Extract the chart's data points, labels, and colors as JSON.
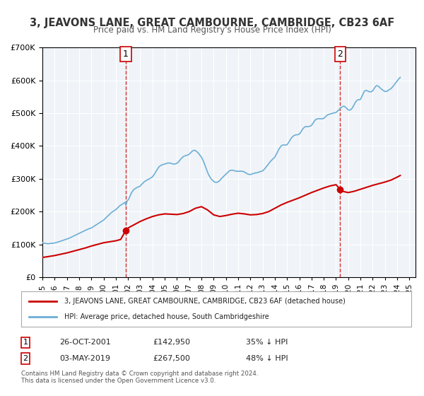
{
  "title": "3, JEAVONS LANE, GREAT CAMBOURNE, CAMBRIDGE, CB23 6AF",
  "subtitle": "Price paid vs. HM Land Registry's House Price Index (HPI)",
  "legend_line1": "3, JEAVONS LANE, GREAT CAMBOURNE, CAMBRIDGE, CB23 6AF (detached house)",
  "legend_line2": "HPI: Average price, detached house, South Cambridgeshire",
  "annotation1_label": "1",
  "annotation1_date": "26-OCT-2001",
  "annotation1_price": "£142,950",
  "annotation1_hpi": "35% ↓ HPI",
  "annotation1_year": 2001.82,
  "annotation1_value": 142950,
  "annotation2_label": "2",
  "annotation2_date": "03-MAY-2019",
  "annotation2_price": "£267,500",
  "annotation2_hpi": "48% ↓ HPI",
  "annotation2_year": 2019.34,
  "annotation2_value": 267500,
  "hpi_color": "#6baed6",
  "price_color": "#cc0000",
  "marker_color": "#cc0000",
  "vline_color": "#cc0000",
  "background_color": "#f0f4f8",
  "ylim": [
    0,
    700000
  ],
  "xlim_start": 1995.0,
  "xlim_end": 2025.5,
  "footer": "Contains HM Land Registry data © Crown copyright and database right 2024.\nThis data is licensed under the Open Government Licence v3.0.",
  "hpi_data": [
    [
      1995.0,
      106000
    ],
    [
      1995.08,
      104000
    ],
    [
      1995.17,
      103500
    ],
    [
      1995.25,
      103000
    ],
    [
      1995.33,
      102500
    ],
    [
      1995.42,
      102000
    ],
    [
      1995.5,
      102000
    ],
    [
      1995.58,
      102500
    ],
    [
      1995.67,
      103000
    ],
    [
      1995.75,
      103000
    ],
    [
      1995.83,
      103500
    ],
    [
      1995.92,
      104000
    ],
    [
      1996.0,
      104500
    ],
    [
      1996.08,
      105000
    ],
    [
      1996.17,
      106000
    ],
    [
      1996.25,
      107000
    ],
    [
      1996.33,
      108000
    ],
    [
      1996.42,
      109000
    ],
    [
      1996.5,
      110000
    ],
    [
      1996.58,
      111000
    ],
    [
      1996.67,
      112000
    ],
    [
      1996.75,
      113000
    ],
    [
      1996.83,
      114000
    ],
    [
      1996.92,
      115000
    ],
    [
      1997.0,
      116000
    ],
    [
      1997.08,
      117000
    ],
    [
      1997.17,
      118500
    ],
    [
      1997.25,
      120000
    ],
    [
      1997.33,
      121500
    ],
    [
      1997.42,
      123000
    ],
    [
      1997.5,
      124500
    ],
    [
      1997.58,
      126000
    ],
    [
      1997.67,
      127500
    ],
    [
      1997.75,
      129000
    ],
    [
      1997.83,
      130500
    ],
    [
      1997.92,
      132000
    ],
    [
      1998.0,
      133500
    ],
    [
      1998.08,
      135000
    ],
    [
      1998.17,
      136500
    ],
    [
      1998.25,
      138000
    ],
    [
      1998.33,
      139500
    ],
    [
      1998.42,
      141000
    ],
    [
      1998.5,
      142500
    ],
    [
      1998.58,
      144000
    ],
    [
      1998.67,
      145500
    ],
    [
      1998.75,
      147000
    ],
    [
      1998.83,
      148000
    ],
    [
      1998.92,
      149000
    ],
    [
      1999.0,
      150000
    ],
    [
      1999.08,
      152000
    ],
    [
      1999.17,
      154000
    ],
    [
      1999.25,
      156000
    ],
    [
      1999.33,
      158000
    ],
    [
      1999.42,
      160000
    ],
    [
      1999.5,
      162000
    ],
    [
      1999.58,
      164000
    ],
    [
      1999.67,
      166000
    ],
    [
      1999.75,
      168000
    ],
    [
      1999.83,
      170000
    ],
    [
      1999.92,
      172000
    ],
    [
      2000.0,
      174000
    ],
    [
      2000.08,
      177000
    ],
    [
      2000.17,
      180000
    ],
    [
      2000.25,
      183000
    ],
    [
      2000.33,
      186000
    ],
    [
      2000.42,
      189000
    ],
    [
      2000.5,
      192000
    ],
    [
      2000.58,
      195000
    ],
    [
      2000.67,
      198000
    ],
    [
      2000.75,
      200000
    ],
    [
      2000.83,
      202000
    ],
    [
      2000.92,
      204000
    ],
    [
      2001.0,
      206000
    ],
    [
      2001.08,
      209000
    ],
    [
      2001.17,
      212000
    ],
    [
      2001.25,
      215000
    ],
    [
      2001.33,
      218000
    ],
    [
      2001.42,
      220000
    ],
    [
      2001.5,
      222000
    ],
    [
      2001.58,
      224000
    ],
    [
      2001.67,
      226000
    ],
    [
      2001.75,
      228000
    ],
    [
      2001.82,
      219000
    ],
    [
      2001.92,
      232000
    ],
    [
      2002.0,
      235000
    ],
    [
      2002.08,
      240000
    ],
    [
      2002.17,
      248000
    ],
    [
      2002.25,
      255000
    ],
    [
      2002.33,
      260000
    ],
    [
      2002.42,
      265000
    ],
    [
      2002.5,
      268000
    ],
    [
      2002.58,
      270000
    ],
    [
      2002.67,
      272000
    ],
    [
      2002.75,
      274000
    ],
    [
      2002.83,
      275000
    ],
    [
      2002.92,
      276000
    ],
    [
      2003.0,
      278000
    ],
    [
      2003.08,
      282000
    ],
    [
      2003.17,
      285000
    ],
    [
      2003.25,
      288000
    ],
    [
      2003.33,
      291000
    ],
    [
      2003.42,
      293000
    ],
    [
      2003.5,
      295000
    ],
    [
      2003.58,
      297000
    ],
    [
      2003.67,
      298000
    ],
    [
      2003.75,
      300000
    ],
    [
      2003.83,
      302000
    ],
    [
      2003.92,
      304000
    ],
    [
      2004.0,
      306000
    ],
    [
      2004.08,
      310000
    ],
    [
      2004.17,
      315000
    ],
    [
      2004.25,
      320000
    ],
    [
      2004.33,
      325000
    ],
    [
      2004.42,
      330000
    ],
    [
      2004.5,
      335000
    ],
    [
      2004.58,
      338000
    ],
    [
      2004.67,
      340000
    ],
    [
      2004.75,
      342000
    ],
    [
      2004.83,
      343000
    ],
    [
      2004.92,
      344000
    ],
    [
      2005.0,
      345000
    ],
    [
      2005.08,
      346000
    ],
    [
      2005.17,
      347000
    ],
    [
      2005.25,
      348000
    ],
    [
      2005.33,
      348000
    ],
    [
      2005.42,
      348000
    ],
    [
      2005.5,
      347000
    ],
    [
      2005.58,
      346000
    ],
    [
      2005.67,
      345000
    ],
    [
      2005.75,
      345000
    ],
    [
      2005.83,
      345000
    ],
    [
      2005.92,
      346000
    ],
    [
      2006.0,
      347000
    ],
    [
      2006.08,
      350000
    ],
    [
      2006.17,
      353000
    ],
    [
      2006.25,
      357000
    ],
    [
      2006.33,
      361000
    ],
    [
      2006.42,
      364000
    ],
    [
      2006.5,
      367000
    ],
    [
      2006.58,
      369000
    ],
    [
      2006.67,
      370000
    ],
    [
      2006.75,
      371000
    ],
    [
      2006.83,
      372000
    ],
    [
      2006.92,
      373000
    ],
    [
      2007.0,
      375000
    ],
    [
      2007.08,
      378000
    ],
    [
      2007.17,
      381000
    ],
    [
      2007.25,
      384000
    ],
    [
      2007.33,
      386000
    ],
    [
      2007.42,
      387000
    ],
    [
      2007.5,
      386000
    ],
    [
      2007.58,
      384000
    ],
    [
      2007.67,
      381000
    ],
    [
      2007.75,
      378000
    ],
    [
      2007.83,
      374000
    ],
    [
      2007.92,
      370000
    ],
    [
      2008.0,
      366000
    ],
    [
      2008.08,
      360000
    ],
    [
      2008.17,
      353000
    ],
    [
      2008.25,
      345000
    ],
    [
      2008.33,
      337000
    ],
    [
      2008.42,
      328000
    ],
    [
      2008.5,
      320000
    ],
    [
      2008.58,
      313000
    ],
    [
      2008.67,
      307000
    ],
    [
      2008.75,
      302000
    ],
    [
      2008.83,
      298000
    ],
    [
      2008.92,
      295000
    ],
    [
      2009.0,
      292000
    ],
    [
      2009.08,
      290000
    ],
    [
      2009.17,
      289000
    ],
    [
      2009.25,
      289000
    ],
    [
      2009.33,
      290000
    ],
    [
      2009.42,
      292000
    ],
    [
      2009.5,
      295000
    ],
    [
      2009.58,
      298000
    ],
    [
      2009.67,
      302000
    ],
    [
      2009.75,
      305000
    ],
    [
      2009.83,
      308000
    ],
    [
      2009.92,
      311000
    ],
    [
      2010.0,
      314000
    ],
    [
      2010.08,
      317000
    ],
    [
      2010.17,
      320000
    ],
    [
      2010.25,
      323000
    ],
    [
      2010.33,
      325000
    ],
    [
      2010.42,
      326000
    ],
    [
      2010.5,
      326000
    ],
    [
      2010.58,
      326000
    ],
    [
      2010.67,
      325000
    ],
    [
      2010.75,
      324000
    ],
    [
      2010.83,
      323000
    ],
    [
      2010.92,
      323000
    ],
    [
      2011.0,
      323000
    ],
    [
      2011.08,
      323000
    ],
    [
      2011.17,
      323000
    ],
    [
      2011.25,
      323000
    ],
    [
      2011.33,
      323000
    ],
    [
      2011.42,
      322000
    ],
    [
      2011.5,
      321000
    ],
    [
      2011.58,
      319000
    ],
    [
      2011.67,
      317000
    ],
    [
      2011.75,
      315000
    ],
    [
      2011.83,
      314000
    ],
    [
      2011.92,
      313000
    ],
    [
      2012.0,
      313000
    ],
    [
      2012.08,
      314000
    ],
    [
      2012.17,
      315000
    ],
    [
      2012.25,
      316000
    ],
    [
      2012.33,
      317000
    ],
    [
      2012.42,
      318000
    ],
    [
      2012.5,
      318000
    ],
    [
      2012.58,
      319000
    ],
    [
      2012.67,
      320000
    ],
    [
      2012.75,
      321000
    ],
    [
      2012.83,
      322000
    ],
    [
      2012.92,
      323000
    ],
    [
      2013.0,
      324000
    ],
    [
      2013.08,
      327000
    ],
    [
      2013.17,
      330000
    ],
    [
      2013.25,
      334000
    ],
    [
      2013.33,
      338000
    ],
    [
      2013.42,
      342000
    ],
    [
      2013.5,
      346000
    ],
    [
      2013.58,
      350000
    ],
    [
      2013.67,
      354000
    ],
    [
      2013.75,
      357000
    ],
    [
      2013.83,
      360000
    ],
    [
      2013.92,
      363000
    ],
    [
      2014.0,
      366000
    ],
    [
      2014.08,
      372000
    ],
    [
      2014.17,
      378000
    ],
    [
      2014.25,
      384000
    ],
    [
      2014.33,
      390000
    ],
    [
      2014.42,
      395000
    ],
    [
      2014.5,
      399000
    ],
    [
      2014.58,
      402000
    ],
    [
      2014.67,
      403000
    ],
    [
      2014.75,
      403000
    ],
    [
      2014.83,
      403000
    ],
    [
      2014.92,
      403000
    ],
    [
      2015.0,
      404000
    ],
    [
      2015.08,
      408000
    ],
    [
      2015.17,
      413000
    ],
    [
      2015.25,
      418000
    ],
    [
      2015.33,
      423000
    ],
    [
      2015.42,
      427000
    ],
    [
      2015.5,
      430000
    ],
    [
      2015.58,
      432000
    ],
    [
      2015.67,
      433000
    ],
    [
      2015.75,
      434000
    ],
    [
      2015.83,
      434000
    ],
    [
      2015.92,
      435000
    ],
    [
      2016.0,
      436000
    ],
    [
      2016.08,
      440000
    ],
    [
      2016.17,
      445000
    ],
    [
      2016.25,
      450000
    ],
    [
      2016.33,
      454000
    ],
    [
      2016.42,
      457000
    ],
    [
      2016.5,
      459000
    ],
    [
      2016.58,
      459000
    ],
    [
      2016.67,
      459000
    ],
    [
      2016.75,
      459000
    ],
    [
      2016.83,
      460000
    ],
    [
      2016.92,
      461000
    ],
    [
      2017.0,
      463000
    ],
    [
      2017.08,
      467000
    ],
    [
      2017.17,
      472000
    ],
    [
      2017.25,
      477000
    ],
    [
      2017.33,
      480000
    ],
    [
      2017.42,
      482000
    ],
    [
      2017.5,
      483000
    ],
    [
      2017.58,
      483000
    ],
    [
      2017.67,
      483000
    ],
    [
      2017.75,
      483000
    ],
    [
      2017.83,
      483000
    ],
    [
      2017.92,
      483000
    ],
    [
      2018.0,
      484000
    ],
    [
      2018.08,
      487000
    ],
    [
      2018.17,
      490000
    ],
    [
      2018.25,
      493000
    ],
    [
      2018.33,
      495000
    ],
    [
      2018.42,
      496000
    ],
    [
      2018.5,
      497000
    ],
    [
      2018.58,
      498000
    ],
    [
      2018.67,
      499000
    ],
    [
      2018.75,
      500000
    ],
    [
      2018.83,
      501000
    ],
    [
      2018.92,
      501000
    ],
    [
      2019.0,
      502000
    ],
    [
      2019.08,
      505000
    ],
    [
      2019.17,
      508000
    ],
    [
      2019.25,
      510000
    ],
    [
      2019.34,
      514000
    ],
    [
      2019.42,
      517000
    ],
    [
      2019.5,
      519000
    ],
    [
      2019.58,
      521000
    ],
    [
      2019.67,
      521000
    ],
    [
      2019.75,
      519000
    ],
    [
      2019.83,
      516000
    ],
    [
      2019.92,
      513000
    ],
    [
      2020.0,
      510000
    ],
    [
      2020.08,
      509000
    ],
    [
      2020.17,
      510000
    ],
    [
      2020.25,
      512000
    ],
    [
      2020.33,
      516000
    ],
    [
      2020.42,
      521000
    ],
    [
      2020.5,
      527000
    ],
    [
      2020.58,
      533000
    ],
    [
      2020.67,
      537000
    ],
    [
      2020.75,
      540000
    ],
    [
      2020.83,
      541000
    ],
    [
      2020.92,
      541000
    ],
    [
      2021.0,
      542000
    ],
    [
      2021.08,
      548000
    ],
    [
      2021.17,
      555000
    ],
    [
      2021.25,
      562000
    ],
    [
      2021.33,
      567000
    ],
    [
      2021.42,
      569000
    ],
    [
      2021.5,
      569000
    ],
    [
      2021.58,
      568000
    ],
    [
      2021.67,
      566000
    ],
    [
      2021.75,
      565000
    ],
    [
      2021.83,
      565000
    ],
    [
      2021.92,
      566000
    ],
    [
      2022.0,
      568000
    ],
    [
      2022.08,
      573000
    ],
    [
      2022.17,
      578000
    ],
    [
      2022.25,
      582000
    ],
    [
      2022.33,
      584000
    ],
    [
      2022.42,
      583000
    ],
    [
      2022.5,
      581000
    ],
    [
      2022.58,
      578000
    ],
    [
      2022.67,
      575000
    ],
    [
      2022.75,
      572000
    ],
    [
      2022.83,
      570000
    ],
    [
      2022.92,
      568000
    ],
    [
      2023.0,
      566000
    ],
    [
      2023.08,
      566000
    ],
    [
      2023.17,
      567000
    ],
    [
      2023.25,
      569000
    ],
    [
      2023.33,
      571000
    ],
    [
      2023.42,
      573000
    ],
    [
      2023.5,
      575000
    ],
    [
      2023.58,
      578000
    ],
    [
      2023.67,
      582000
    ],
    [
      2023.75,
      586000
    ],
    [
      2023.83,
      590000
    ],
    [
      2023.92,
      594000
    ],
    [
      2024.0,
      598000
    ],
    [
      2024.08,
      602000
    ],
    [
      2024.17,
      606000
    ],
    [
      2024.25,
      609000
    ]
  ],
  "price_data": [
    [
      1995.0,
      60000
    ],
    [
      1995.5,
      63000
    ],
    [
      1996.0,
      66000
    ],
    [
      1996.5,
      70000
    ],
    [
      1997.0,
      74000
    ],
    [
      1997.5,
      79000
    ],
    [
      1998.0,
      84000
    ],
    [
      1998.5,
      89000
    ],
    [
      1999.0,
      95000
    ],
    [
      1999.5,
      100000
    ],
    [
      2000.0,
      105000
    ],
    [
      2000.5,
      108000
    ],
    [
      2001.0,
      111000
    ],
    [
      2001.4,
      115000
    ],
    [
      2001.82,
      142950
    ],
    [
      2002.0,
      150000
    ],
    [
      2002.5,
      160000
    ],
    [
      2003.0,
      170000
    ],
    [
      2003.5,
      178000
    ],
    [
      2004.0,
      185000
    ],
    [
      2004.5,
      190000
    ],
    [
      2005.0,
      193000
    ],
    [
      2005.5,
      192000
    ],
    [
      2006.0,
      191000
    ],
    [
      2006.5,
      194000
    ],
    [
      2007.0,
      200000
    ],
    [
      2007.5,
      210000
    ],
    [
      2008.0,
      215000
    ],
    [
      2008.5,
      205000
    ],
    [
      2009.0,
      190000
    ],
    [
      2009.5,
      185000
    ],
    [
      2010.0,
      188000
    ],
    [
      2010.5,
      192000
    ],
    [
      2011.0,
      195000
    ],
    [
      2011.5,
      193000
    ],
    [
      2012.0,
      190000
    ],
    [
      2012.5,
      191000
    ],
    [
      2013.0,
      194000
    ],
    [
      2013.5,
      200000
    ],
    [
      2014.0,
      210000
    ],
    [
      2014.5,
      220000
    ],
    [
      2015.0,
      228000
    ],
    [
      2015.5,
      235000
    ],
    [
      2016.0,
      242000
    ],
    [
      2016.5,
      250000
    ],
    [
      2017.0,
      258000
    ],
    [
      2017.5,
      265000
    ],
    [
      2018.0,
      272000
    ],
    [
      2018.5,
      278000
    ],
    [
      2019.0,
      282000
    ],
    [
      2019.34,
      267500
    ],
    [
      2019.5,
      262000
    ],
    [
      2020.0,
      258000
    ],
    [
      2020.5,
      262000
    ],
    [
      2021.0,
      268000
    ],
    [
      2021.5,
      274000
    ],
    [
      2022.0,
      280000
    ],
    [
      2022.5,
      285000
    ],
    [
      2023.0,
      290000
    ],
    [
      2023.5,
      296000
    ],
    [
      2024.0,
      305000
    ],
    [
      2024.25,
      310000
    ]
  ]
}
